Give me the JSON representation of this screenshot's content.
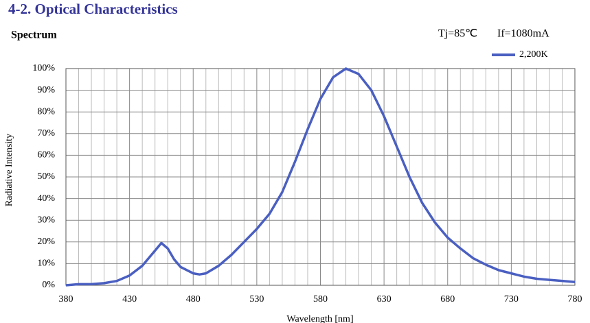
{
  "chart_data": {
    "type": "line",
    "title": "4-2. Optical Characteristics",
    "subtitle": "Spectrum",
    "annotations": [
      "Tj=85℃",
      "If=1080mA"
    ],
    "x_label": "Wavelength [nm]",
    "y_label": "Radiative Intensity",
    "x": [
      380,
      390,
      400,
      410,
      420,
      430,
      440,
      450,
      455,
      460,
      465,
      470,
      480,
      485,
      490,
      500,
      510,
      520,
      530,
      540,
      550,
      560,
      570,
      580,
      590,
      600,
      610,
      620,
      630,
      640,
      650,
      660,
      670,
      680,
      690,
      700,
      710,
      720,
      730,
      740,
      750,
      760,
      770,
      780
    ],
    "series": [
      {
        "name": "2,200K",
        "color": "#4a5fc1",
        "values": [
          0,
          0.5,
          0.5,
          1,
          2,
          4.5,
          9,
          16,
          19.5,
          17,
          12,
          8.5,
          5.5,
          5,
          5.5,
          9,
          14,
          20,
          26,
          33,
          43,
          57,
          72,
          86,
          96,
          100,
          97.5,
          90,
          78,
          64,
          50,
          38,
          29,
          22,
          17,
          12.5,
          9.5,
          7,
          5.5,
          4,
          3,
          2.5,
          2,
          1.5
        ]
      }
    ],
    "xlim": [
      380,
      780
    ],
    "xticks": [
      380,
      430,
      480,
      530,
      580,
      630,
      680,
      730,
      780
    ],
    "ylim": [
      0,
      100
    ],
    "yticks": [
      {
        "value": 0,
        "label": "0%"
      },
      {
        "value": 10,
        "label": "10%"
      },
      {
        "value": 20,
        "label": "20%"
      },
      {
        "value": 30,
        "label": "30%"
      },
      {
        "value": 40,
        "label": "40%"
      },
      {
        "value": 50,
        "label": "50%"
      },
      {
        "value": 60,
        "label": "60%"
      },
      {
        "value": 70,
        "label": "70%"
      },
      {
        "value": 80,
        "label": "80%"
      },
      {
        "value": 90,
        "label": "90%"
      },
      {
        "value": 100,
        "label": "100%"
      }
    ],
    "grid": true,
    "legend": "top-right"
  }
}
